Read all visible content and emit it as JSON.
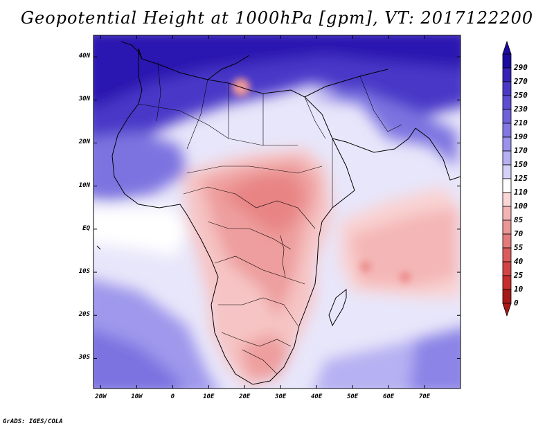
{
  "title": "Geopotential Height at 1000hPa [gpm], VT: 2017122200",
  "credit": "GrADS: IGES/COLA",
  "map": {
    "lon_range": [
      -22,
      80
    ],
    "lat_range": [
      -37,
      45
    ],
    "lat_ticks": [
      {
        "value": 40,
        "label": "40N"
      },
      {
        "value": 30,
        "label": "30N"
      },
      {
        "value": 20,
        "label": "20N"
      },
      {
        "value": 10,
        "label": "10N"
      },
      {
        "value": 0,
        "label": "EQ"
      },
      {
        "value": -10,
        "label": "10S"
      },
      {
        "value": -20,
        "label": "20S"
      },
      {
        "value": -30,
        "label": "30S"
      }
    ],
    "lon_ticks": [
      {
        "value": -20,
        "label": "20W"
      },
      {
        "value": -10,
        "label": "10W"
      },
      {
        "value": 0,
        "label": "0"
      },
      {
        "value": 10,
        "label": "10E"
      },
      {
        "value": 20,
        "label": "20E"
      },
      {
        "value": 30,
        "label": "30E"
      },
      {
        "value": 40,
        "label": "40E"
      },
      {
        "value": 50,
        "label": "50E"
      },
      {
        "value": 60,
        "label": "60E"
      },
      {
        "value": 70,
        "label": "70E"
      }
    ]
  },
  "colorbar": {
    "labels": [
      "290",
      "270",
      "250",
      "230",
      "210",
      "190",
      "170",
      "150",
      "125",
      "110",
      "100",
      "85",
      "70",
      "55",
      "40",
      "25",
      "10",
      "0"
    ],
    "colors": [
      "#1a0aa0",
      "#3622b8",
      "#4a38c8",
      "#5c4ed4",
      "#6e62dc",
      "#8278e4",
      "#9a92ec",
      "#b4b0f2",
      "#d4d2f8",
      "#ffffff",
      "#fbd6d6",
      "#f4b4b4",
      "#ec9696",
      "#e47a7a",
      "#dc5c5c",
      "#d44444",
      "#c82c2c",
      "#a81818"
    ]
  }
}
